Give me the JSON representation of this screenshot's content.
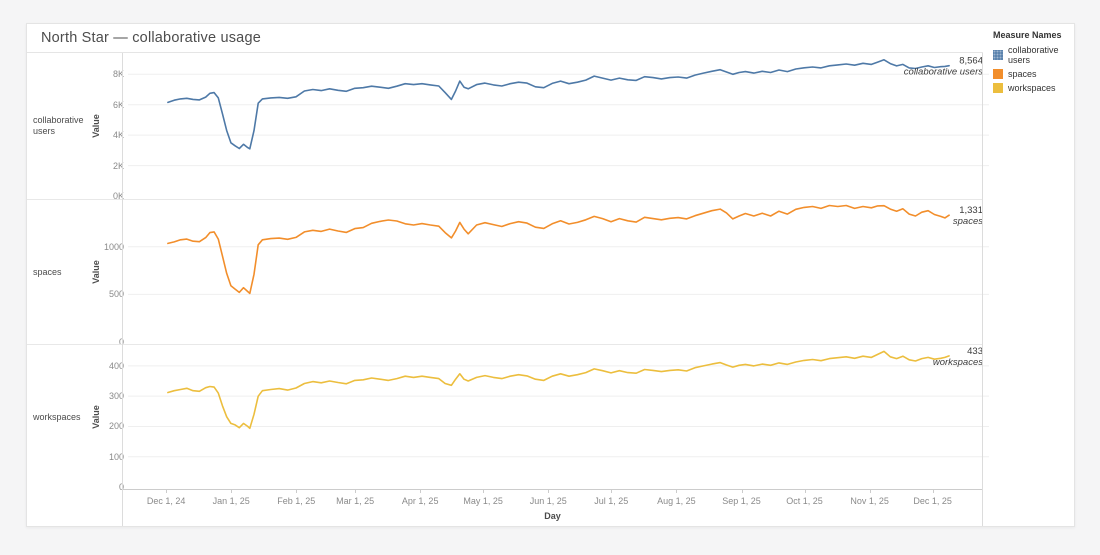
{
  "page": {
    "background": "#f5f5f6"
  },
  "card": {
    "title": "North Star — collaborative usage"
  },
  "legend": {
    "title": "Measure Names",
    "items": [
      {
        "label": "collaborative users",
        "color": "#4e79a7",
        "patterned": true
      },
      {
        "label": "spaces",
        "color": "#f28e2b",
        "patterned": false
      },
      {
        "label": "workspaces",
        "color": "#ecbe3e",
        "patterned": false
      }
    ]
  },
  "x_axis": {
    "title": "Day",
    "domain_days": [
      -21,
      389
    ],
    "ticks": [
      {
        "day": 0,
        "label": "Dec 1, 24"
      },
      {
        "day": 31,
        "label": "Jan 1, 25"
      },
      {
        "day": 62,
        "label": "Feb 1, 25"
      },
      {
        "day": 90,
        "label": "Mar 1, 25"
      },
      {
        "day": 121,
        "label": "Apr 1, 25"
      },
      {
        "day": 151,
        "label": "May 1, 25"
      },
      {
        "day": 182,
        "label": "Jun 1, 25"
      },
      {
        "day": 212,
        "label": "Jul 1, 25"
      },
      {
        "day": 243,
        "label": "Aug 1, 25"
      },
      {
        "day": 274,
        "label": "Sep 1, 25"
      },
      {
        "day": 304,
        "label": "Oct 1, 25"
      },
      {
        "day": 335,
        "label": "Nov 1, 25"
      },
      {
        "day": 365,
        "label": "Dec 1, 25"
      }
    ]
  },
  "days": [
    -2,
    1,
    4,
    7,
    10,
    13,
    16,
    18,
    20,
    22,
    24,
    26,
    28,
    30,
    32,
    34,
    36,
    37,
    39,
    41,
    43,
    47,
    51,
    55,
    59,
    63,
    67,
    71,
    75,
    79,
    83,
    87,
    91,
    95,
    99,
    103,
    107,
    111,
    115,
    119,
    123,
    127,
    130,
    133,
    135,
    137,
    139,
    141,
    145,
    149,
    153,
    157,
    161,
    165,
    169,
    173,
    177,
    181,
    185,
    189,
    193,
    197,
    201,
    205,
    209,
    213,
    217,
    221,
    225,
    229,
    233,
    237,
    241,
    245,
    249,
    253,
    257,
    261,
    264,
    267,
    270,
    273,
    277,
    281,
    285,
    289,
    293,
    297,
    301,
    305,
    309,
    313,
    317,
    321,
    325,
    329,
    333,
    336,
    339,
    342,
    345,
    348,
    351,
    354,
    357,
    360,
    363,
    366,
    368,
    370
  ],
  "chart_data": [
    {
      "type": "line",
      "row_label": "collaborative users",
      "y_axis_label": "Value",
      "xlabel": "Day",
      "color": "#4e79a7",
      "y_top": 9400,
      "ylim": [
        0,
        9400
      ],
      "grid": true,
      "y_ticks": [
        {
          "v": 0,
          "label": "0K"
        },
        {
          "v": 2000,
          "label": "2K"
        },
        {
          "v": 4000,
          "label": "4K"
        },
        {
          "v": 6000,
          "label": "6K"
        },
        {
          "v": 8000,
          "label": "8K"
        }
      ],
      "end_label": {
        "value": "8,564",
        "name": "collaborative users"
      },
      "values": [
        6150,
        6300,
        6380,
        6420,
        6350,
        6320,
        6500,
        6750,
        6800,
        6450,
        5400,
        4300,
        3500,
        3300,
        3120,
        3400,
        3180,
        3100,
        4300,
        6100,
        6380,
        6450,
        6480,
        6420,
        6520,
        6900,
        7000,
        6930,
        7050,
        6950,
        6880,
        7080,
        7120,
        7220,
        7150,
        7080,
        7220,
        7380,
        7320,
        7380,
        7300,
        7230,
        6800,
        6350,
        6900,
        7550,
        7150,
        7050,
        7320,
        7420,
        7300,
        7230,
        7380,
        7480,
        7420,
        7180,
        7120,
        7400,
        7550,
        7380,
        7480,
        7620,
        7880,
        7750,
        7620,
        7750,
        7640,
        7600,
        7840,
        7780,
        7700,
        7780,
        7820,
        7750,
        7950,
        8080,
        8200,
        8300,
        8150,
        8000,
        8120,
        8180,
        8080,
        8200,
        8120,
        8280,
        8180,
        8350,
        8430,
        8480,
        8420,
        8560,
        8620,
        8680,
        8600,
        8720,
        8650,
        8800,
        8950,
        8700,
        8550,
        8650,
        8420,
        8380,
        8480,
        8560,
        8450,
        8500,
        8520,
        8564
      ]
    },
    {
      "type": "line",
      "row_label": "spaces",
      "y_axis_label": "Value",
      "xlabel": "Day",
      "color": "#f28e2b",
      "y_top": 1490,
      "ylim": [
        0,
        1490
      ],
      "grid": true,
      "y_ticks": [
        {
          "v": 0,
          "label": "0"
        },
        {
          "v": 500,
          "label": "500"
        },
        {
          "v": 1000,
          "label": "1000"
        }
      ],
      "end_label": {
        "value": "1,331",
        "name": "spaces"
      },
      "values": [
        1035,
        1050,
        1072,
        1080,
        1058,
        1052,
        1095,
        1148,
        1155,
        1080,
        900,
        720,
        590,
        555,
        520,
        570,
        530,
        510,
        710,
        1020,
        1072,
        1085,
        1090,
        1078,
        1098,
        1155,
        1172,
        1160,
        1185,
        1165,
        1150,
        1190,
        1200,
        1245,
        1265,
        1280,
        1270,
        1240,
        1228,
        1242,
        1228,
        1215,
        1148,
        1092,
        1165,
        1255,
        1185,
        1135,
        1228,
        1252,
        1232,
        1212,
        1242,
        1262,
        1248,
        1205,
        1192,
        1240,
        1272,
        1238,
        1255,
        1282,
        1318,
        1295,
        1262,
        1295,
        1272,
        1258,
        1308,
        1295,
        1282,
        1298,
        1305,
        1292,
        1325,
        1352,
        1378,
        1395,
        1355,
        1292,
        1322,
        1348,
        1322,
        1352,
        1322,
        1372,
        1342,
        1392,
        1412,
        1422,
        1402,
        1432,
        1422,
        1432,
        1402,
        1422,
        1408,
        1428,
        1430,
        1395,
        1372,
        1398,
        1342,
        1322,
        1362,
        1378,
        1338,
        1318,
        1302,
        1331
      ]
    },
    {
      "type": "line",
      "row_label": "workspaces",
      "y_axis_label": "Value",
      "xlabel": "Day",
      "color": "#ecbe3e",
      "y_top": 469,
      "ylim": [
        0,
        469
      ],
      "grid": true,
      "y_ticks": [
        {
          "v": 0,
          "label": "0"
        },
        {
          "v": 100,
          "label": "100"
        },
        {
          "v": 200,
          "label": "200"
        },
        {
          "v": 300,
          "label": "300"
        },
        {
          "v": 400,
          "label": "400"
        }
      ],
      "end_label": {
        "value": "433",
        "name": "workspaces"
      },
      "values": [
        312,
        318,
        322,
        326,
        318,
        316,
        328,
        332,
        330,
        310,
        268,
        232,
        210,
        205,
        196,
        210,
        200,
        194,
        240,
        300,
        318,
        322,
        325,
        320,
        327,
        342,
        348,
        344,
        350,
        345,
        341,
        352,
        354,
        360,
        356,
        352,
        358,
        366,
        362,
        366,
        362,
        358,
        342,
        336,
        356,
        374,
        356,
        350,
        362,
        368,
        362,
        358,
        366,
        371,
        367,
        356,
        352,
        366,
        374,
        366,
        371,
        378,
        390,
        384,
        377,
        384,
        378,
        376,
        388,
        385,
        381,
        385,
        387,
        383,
        394,
        400,
        406,
        411,
        403,
        396,
        402,
        405,
        400,
        406,
        402,
        410,
        405,
        413,
        418,
        421,
        417,
        424,
        427,
        430,
        425,
        432,
        428,
        438,
        448,
        430,
        424,
        432,
        420,
        416,
        424,
        428,
        422,
        425,
        428,
        433
      ]
    }
  ]
}
